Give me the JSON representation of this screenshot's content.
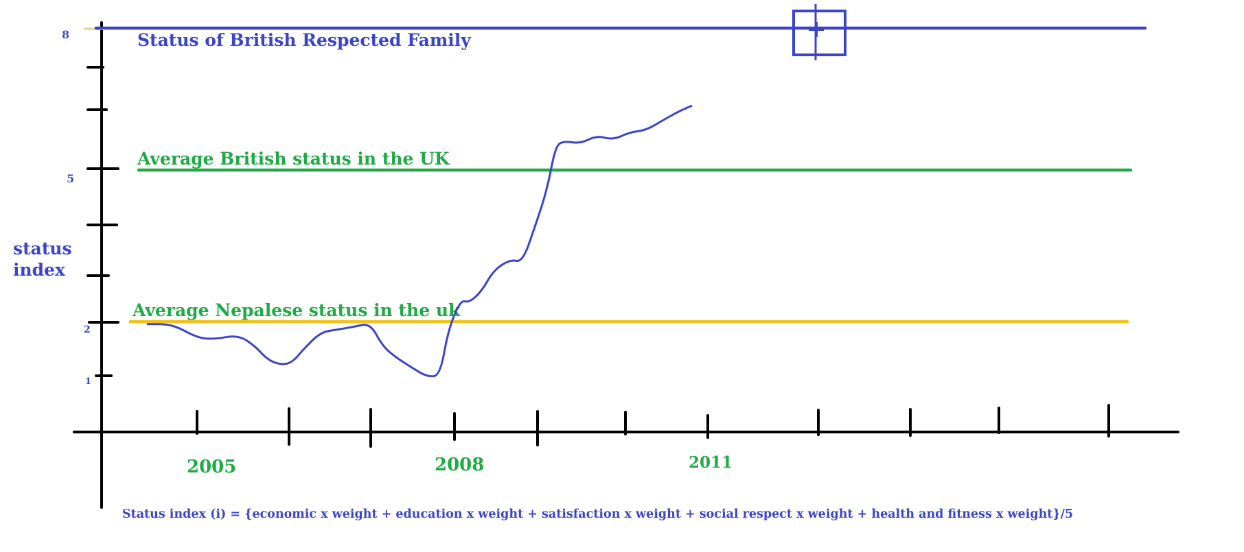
{
  "colors": {
    "axis": "#000000",
    "blue": "#3b45c7",
    "green": "#1faa44",
    "yellow": "#f2c21b",
    "tan": "#e9d9a8"
  },
  "chart_data": {
    "type": "line",
    "ylabel_line1": "status",
    "ylabel_line2": "index",
    "xlabel": "",
    "y_tick_labels": [
      "8",
      "5",
      "2",
      "1"
    ],
    "x_tick_labels": [
      "2005",
      "2008",
      "2011"
    ],
    "ylim": [
      0,
      8
    ],
    "xlim": [
      2004,
      2016
    ],
    "formula": "Status index (i) = {economic  x weight + education x weight + satisfaction x weight + social respect x weight + health and fitness x weight}/5",
    "reference_lines": [
      {
        "label": "Status of British Respected Family",
        "value": 8,
        "color": "blue"
      },
      {
        "label": "Average British status in the UK",
        "value": 5,
        "color": "green"
      },
      {
        "label": "Average Nepalese status in the uk",
        "value": 2,
        "color": "yellow"
      }
    ],
    "series": [
      {
        "color": "blue",
        "x": [
          2004.4,
          2004.7,
          2005.0,
          2005.2,
          2005.5,
          2005.7,
          2005.85,
          2006.0,
          2006.15,
          2006.3,
          2006.5,
          2006.7,
          2006.9,
          2007.1,
          2007.25,
          2007.4,
          2007.6,
          2007.8,
          2007.95,
          2008.05,
          2008.2,
          2008.3,
          2008.45,
          2008.6,
          2008.8,
          2008.95,
          2009.1,
          2009.25,
          2009.35,
          2009.45,
          2009.65,
          2009.85,
          2010.05,
          2010.25,
          2010.45,
          2010.65,
          2010.85,
          2011.0
        ],
        "values": [
          2.0,
          2.0,
          1.75,
          1.72,
          1.8,
          1.6,
          1.35,
          1.25,
          1.28,
          1.55,
          1.85,
          1.9,
          1.95,
          2.02,
          1.6,
          1.4,
          1.2,
          1.02,
          1.05,
          1.9,
          2.45,
          2.4,
          2.6,
          3.0,
          3.2,
          3.15,
          3.8,
          4.5,
          5.3,
          5.4,
          5.35,
          5.5,
          5.42,
          5.56,
          5.6,
          5.78,
          5.95,
          6.05
        ]
      }
    ]
  }
}
